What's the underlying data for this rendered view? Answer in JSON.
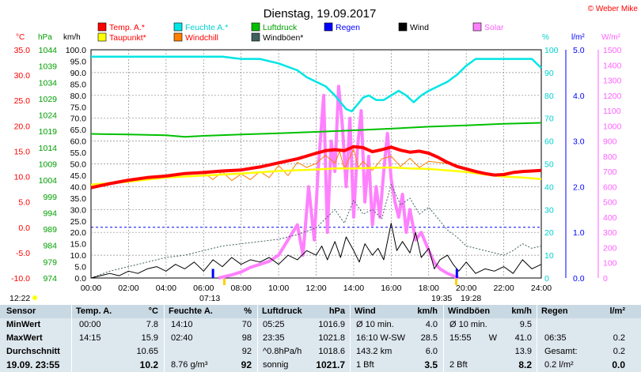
{
  "chart_data": {
    "type": "line",
    "title": "Dienstag, 19.09.2017",
    "copyright": "© Weber Mike",
    "legend": [
      {
        "name": "Temp. A.*",
        "color": "#ff0000"
      },
      {
        "name": "Feuchte A.*",
        "color": "#00e5e5"
      },
      {
        "name": "Luftdruck",
        "color": "#00c000"
      },
      {
        "name": "Regen",
        "color": "#0000ff"
      },
      {
        "name": "Wind",
        "color": "#000000"
      },
      {
        "name": "Solar",
        "color": "#ff80ff"
      },
      {
        "name": "Taupunkt*",
        "color": "#ffff00"
      },
      {
        "name": "Windchill",
        "color": "#ff8000"
      },
      {
        "name": "Windböen*",
        "color": "#406060"
      }
    ],
    "axes": {
      "temp": {
        "unit": "°C",
        "min": -10,
        "max": 35,
        "ticks": [
          "35.0",
          "30.0",
          "25.0",
          "20.0",
          "15.0",
          "10.0",
          "5.0",
          "0.0",
          "-5.0",
          "-10.0"
        ]
      },
      "pressure": {
        "unit": "hPa",
        "min": 974,
        "max": 1044,
        "ticks": [
          "1044",
          "1039",
          "1034",
          "1029",
          "1024",
          "1019",
          "1014",
          "1009",
          "1004",
          "999",
          "994",
          "989",
          "984",
          "979",
          "974"
        ]
      },
      "wind": {
        "unit": "km/h",
        "min": 0,
        "max": 100,
        "ticks": [
          "100.0",
          "95.0",
          "90.0",
          "85.0",
          "80.0",
          "75.0",
          "70.0",
          "65.0",
          "60.0",
          "55.0",
          "50.0",
          "45.0",
          "40.0",
          "35.0",
          "30.0",
          "25.0",
          "20.0",
          "15.0",
          "10.0",
          "5.0",
          "0.0"
        ]
      },
      "humidity": {
        "unit": "%",
        "min": 0,
        "max": 100,
        "ticks": [
          "100",
          "90",
          "80",
          "70",
          "60",
          "50",
          "40",
          "30",
          "20",
          "10",
          "0"
        ]
      },
      "rain": {
        "unit": "l/m²",
        "min": 0,
        "max": 5,
        "ticks": [
          "5.0",
          "4.0",
          "3.0",
          "2.0",
          "1.0",
          "0.0"
        ]
      },
      "solar": {
        "unit": "W/m²",
        "min": 0,
        "max": 1500,
        "ticks": [
          "1500",
          "1400",
          "1300",
          "1200",
          "1100",
          "1000",
          "900",
          "800",
          "700",
          "600",
          "500",
          "400",
          "300",
          "200",
          "100",
          "0"
        ]
      },
      "x": {
        "ticks": [
          "00:00",
          "02:00",
          "04:00",
          "06:00",
          "08:00",
          "10:00",
          "12:00",
          "14:00",
          "16:00",
          "18:00",
          "20:00",
          "22:00",
          "24:00"
        ]
      }
    },
    "sun_labels": {
      "moonset": "12:22",
      "sunrise": "07:13",
      "sunset": "19:35",
      "moonrise": "19:28"
    },
    "dashed_refs": {
      "temp_zero": 0.0,
      "rain_one": 1.0
    },
    "series": {
      "temp": {
        "x": [
          0,
          1,
          2,
          3,
          4,
          5,
          6,
          7,
          8,
          9,
          10,
          11,
          12,
          12.5,
          13,
          13.5,
          14,
          14.5,
          15,
          15.5,
          16,
          16.5,
          17,
          17.5,
          18,
          18.5,
          19,
          19.5,
          20,
          20.5,
          21,
          21.5,
          22,
          22.5,
          23,
          23.5,
          24
        ],
        "y": [
          7.8,
          8.6,
          9.3,
          9.8,
          10.1,
          10.6,
          10.8,
          11.1,
          11.3,
          11.9,
          12.7,
          13.5,
          14.6,
          15.1,
          15.3,
          15.1,
          15.9,
          15.7,
          14.9,
          15.3,
          15.8,
          15.2,
          14.8,
          15.0,
          14.6,
          13.8,
          12.8,
          12.0,
          11.5,
          11.0,
          10.6,
          10.3,
          10.4,
          10.8,
          11.0,
          11.1,
          11.2
        ]
      },
      "dewpoint": {
        "x": [
          0,
          2,
          4,
          6,
          8,
          10,
          12,
          13,
          14,
          15,
          16,
          17,
          18,
          19,
          20,
          21,
          22,
          23,
          24
        ],
        "y": [
          8.4,
          9.0,
          9.8,
          10.2,
          10.6,
          11.1,
          11.4,
          11.6,
          11.6,
          11.7,
          11.8,
          11.6,
          11.5,
          11.2,
          10.9,
          10.4,
          10.0,
          9.8,
          9.5
        ]
      },
      "windchill": {
        "x": [
          0,
          1,
          2,
          3,
          4,
          5,
          6,
          6.5,
          7,
          7.5,
          8,
          8.5,
          9,
          9.5,
          10,
          10.5,
          11,
          11.5,
          12,
          12.5,
          13,
          13.25,
          13.5,
          14,
          14.25,
          14.5,
          15,
          15.5,
          16,
          16.5,
          17,
          17.5,
          18,
          18.5,
          19,
          20,
          21,
          22,
          23,
          24
        ],
        "y": [
          7.8,
          8.6,
          9.3,
          9.8,
          10.1,
          10.6,
          10.8,
          9.4,
          11.0,
          9.2,
          10.5,
          9.4,
          11.0,
          9.8,
          12.2,
          10.2,
          12.8,
          11.8,
          12.6,
          14.2,
          12.6,
          15.0,
          11.5,
          15.4,
          11.8,
          13.0,
          11.2,
          13.5,
          14.0,
          12.0,
          13.6,
          11.8,
          13.0,
          12.8,
          12.6,
          11.5,
          10.6,
          10.4,
          11.0,
          11.2
        ]
      },
      "humidity": {
        "x": [
          0,
          1,
          2,
          3,
          4,
          5,
          6,
          7,
          8,
          9,
          10,
          11,
          11.5,
          12,
          12.5,
          13,
          13.3,
          13.6,
          13.9,
          14.2,
          14.5,
          14.8,
          15.2,
          15.6,
          16,
          16.4,
          16.8,
          17.2,
          17.6,
          18,
          18.5,
          19,
          19.5,
          20,
          20.5,
          21,
          21.5,
          22,
          22.5,
          23,
          23.5,
          24
        ],
        "y": [
          97,
          97,
          97,
          97,
          97,
          97,
          97,
          97,
          96,
          96,
          94,
          91,
          88,
          86,
          84,
          80,
          77,
          74,
          73,
          76,
          79,
          80,
          78,
          78,
          80,
          82,
          80,
          77,
          80,
          82,
          84,
          86,
          89,
          93,
          96,
          96,
          96,
          96,
          96,
          96,
          96,
          92
        ]
      },
      "pressure": {
        "x": [
          0,
          2,
          4,
          5,
          6,
          8,
          10,
          12,
          14,
          16,
          18,
          20,
          22,
          24
        ],
        "y": [
          1018.2,
          1018.0,
          1017.8,
          1017.3,
          1017.6,
          1018.0,
          1018.4,
          1018.8,
          1019.3,
          1019.8,
          1020.4,
          1020.8,
          1021.3,
          1021.6
        ]
      },
      "wind": {
        "x": [
          0,
          0.5,
          1,
          1.5,
          2,
          2.5,
          3,
          3.5,
          4,
          4.5,
          5,
          5.5,
          6,
          6.5,
          7,
          7.5,
          8,
          8.5,
          9,
          9.5,
          10,
          10.5,
          11,
          11.5,
          12,
          12.3,
          12.6,
          13,
          13.3,
          13.6,
          14,
          14.3,
          14.6,
          15,
          15.3,
          15.6,
          16,
          16.3,
          16.6,
          17,
          17.3,
          17.6,
          18,
          18.3,
          18.6,
          19,
          19.3,
          19.6,
          20,
          20.5,
          21,
          21.5,
          22,
          22.5,
          23,
          23.5,
          24
        ],
        "y": [
          0,
          1,
          2,
          1,
          3,
          2,
          4,
          5,
          3,
          6,
          4,
          7,
          3,
          8,
          5,
          9,
          6,
          8,
          7,
          9,
          6,
          10,
          8,
          12,
          10,
          14,
          8,
          16,
          9,
          18,
          12,
          7,
          15,
          10,
          13,
          8,
          24,
          12,
          16,
          11,
          20,
          9,
          13,
          4,
          8,
          10,
          6,
          3,
          7,
          2,
          4,
          3,
          5,
          2,
          8,
          4,
          6
        ]
      },
      "gust": {
        "x": [
          0,
          1,
          2,
          3,
          4,
          5,
          6,
          7,
          8,
          9,
          10,
          11,
          12,
          12.5,
          13,
          13.5,
          14,
          14.5,
          15,
          15.5,
          16,
          16.5,
          17,
          17.5,
          18,
          18.5,
          19,
          19.5,
          20,
          21,
          22,
          22.5,
          23,
          23.5,
          24
        ],
        "y": [
          0,
          3,
          5,
          7,
          9,
          10,
          12,
          14,
          15,
          16,
          17,
          19,
          22,
          26,
          30,
          24,
          34,
          28,
          30,
          26,
          41,
          32,
          35,
          28,
          31,
          26,
          21,
          18,
          14,
          12,
          10,
          12,
          15,
          13,
          14
        ]
      },
      "solar": {
        "x": [
          6.8,
          7.5,
          8,
          8.5,
          9,
          9.5,
          10,
          10.5,
          11,
          11.3,
          11.6,
          11.9,
          12.1,
          12.4,
          12.6,
          12.8,
          13,
          13.2,
          13.4,
          13.6,
          13.8,
          14,
          14.2,
          14.4,
          14.6,
          14.8,
          15,
          15.2,
          15.4,
          15.6,
          15.8,
          16,
          16.2,
          16.4,
          16.6,
          16.8,
          17,
          17.3,
          17.6,
          18,
          18.3,
          18.6,
          19,
          19.4,
          19.6
        ],
        "y": [
          0,
          20,
          40,
          70,
          90,
          110,
          150,
          250,
          350,
          150,
          600,
          250,
          700,
          1200,
          300,
          900,
          700,
          1260,
          1000,
          600,
          1050,
          400,
          850,
          1100,
          500,
          800,
          350,
          600,
          400,
          700,
          950,
          650,
          500,
          400,
          550,
          300,
          450,
          250,
          300,
          180,
          100,
          60,
          30,
          10,
          0
        ]
      }
    },
    "rain_marks": [
      {
        "x": 6.5,
        "y": 0.2
      },
      {
        "x": 19.5,
        "y": 0.2
      }
    ]
  },
  "table": {
    "headers": {
      "sensor": "Sensor",
      "temp": "Temp. A.",
      "temp_unit": "°C",
      "hum": "Feuchte A.",
      "hum_unit": "%",
      "press": "Luftdruck",
      "press_unit": "hPa",
      "wind": "Wind",
      "wind_unit": "km/h",
      "gust": "Windböen",
      "gust_unit": "km/h",
      "rain": "Regen",
      "rain_unit": "l/m²"
    },
    "rows": [
      {
        "label": "MinWert",
        "temp_t": "00:00",
        "temp_v": "7.8",
        "hum_t": "14:10",
        "hum_v": "70",
        "press_t": "05:25",
        "press_v": "1016.9",
        "wind_t": "Ø 10 min.",
        "wind_v": "4.0",
        "gust_t": "Ø 10 min.",
        "gust_v": "9.5",
        "rain_t": "",
        "rain_v": ""
      },
      {
        "label": "MaxWert",
        "temp_t": "14:15",
        "temp_v": "15.9",
        "hum_t": "02:40",
        "hum_v": "98",
        "press_t": "23:35",
        "press_v": "1021.8",
        "wind_t": "16:10",
        "wind_dir": "W-SW",
        "wind_v": "28.5",
        "gust_t": "15:55",
        "gust_dir": "W",
        "gust_v": "41.0",
        "rain_t": "06:35",
        "rain_v": "0.2"
      },
      {
        "label": "Durchschnitt",
        "temp_t": "",
        "temp_v": "10.65",
        "hum_t": "",
        "hum_v": "92",
        "press_t": "^0.8hPa/h",
        "press_v": "1018.6",
        "wind_t": "143.2 km",
        "wind_v": "6.0",
        "gust_t": "",
        "gust_v": "13.9",
        "rain_t": "Gesamt:",
        "rain_v": "0.2"
      },
      {
        "label": "19.09. 23:55",
        "temp_t": "",
        "temp_v": "10.2",
        "hum_t": "8.76 g/m³",
        "hum_v": "92",
        "press_t": "sonnig",
        "press_v": "1021.7",
        "wind_t": "1 Bft",
        "wind_v": "3.5",
        "gust_t": "2 Bft",
        "gust_v": "8.2",
        "rain_t": "0.2 l/m²",
        "rain_v": "0.0"
      }
    ]
  }
}
